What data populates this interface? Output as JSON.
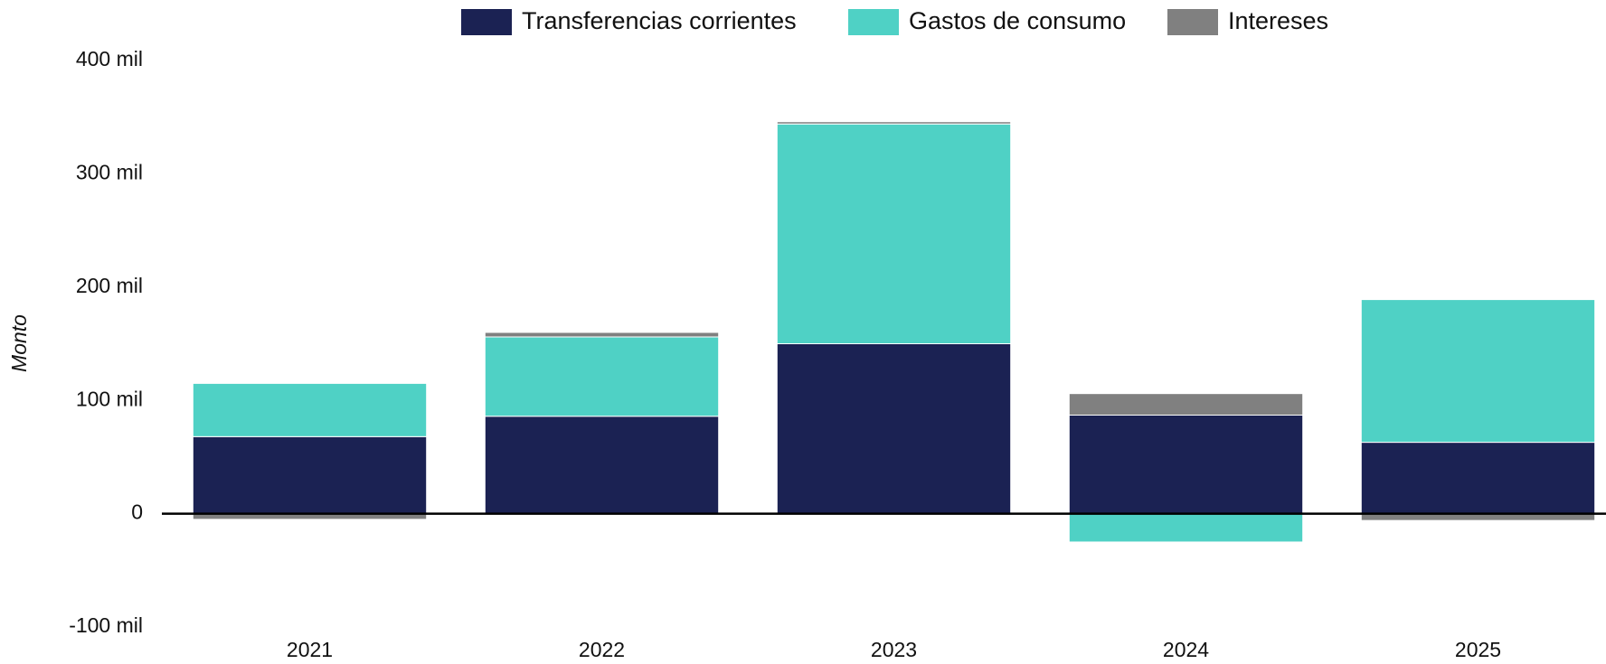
{
  "chart_data": {
    "type": "bar",
    "stacked": true,
    "y_label": "Monto",
    "categories": [
      "2021",
      "2022",
      "2023",
      "2024",
      "2025"
    ],
    "series": [
      {
        "name": "Transferencias corrientes",
        "color": "#1b2253",
        "values": [
          68000,
          86000,
          150000,
          87000,
          63000
        ]
      },
      {
        "name": "Gastos de consumo",
        "color": "#4fd1c5",
        "values": [
          47000,
          70000,
          194000,
          -25000,
          126000
        ]
      },
      {
        "name": "Intereses",
        "color": "#808080",
        "values": [
          -5000,
          4000,
          2000,
          19000,
          -6000
        ]
      }
    ],
    "ylim": [
      -100000,
      400000
    ],
    "yticks": [
      {
        "value": -100000,
        "label": "-100 mil"
      },
      0,
      {
        "value": 100000,
        "label": "100 mil"
      },
      {
        "value": 200000,
        "label": "200 mil"
      },
      {
        "value": 300000,
        "label": "300 mil"
      },
      {
        "value": 400000,
        "label": "400 mil"
      }
    ],
    "grid": false,
    "legend": "top"
  }
}
